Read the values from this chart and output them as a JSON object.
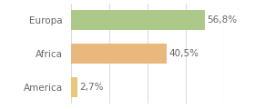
{
  "categories": [
    "America",
    "Africa",
    "Europa"
  ],
  "values": [
    2.7,
    40.5,
    56.8
  ],
  "bar_colors": [
    "#e8c878",
    "#e8b87c",
    "#adc98a"
  ],
  "labels": [
    "2,7%",
    "40,5%",
    "56,8%"
  ],
  "background_color": "#ffffff",
  "xlim": [
    0,
    65
  ],
  "bar_height": 0.6,
  "label_fontsize": 7.5,
  "tick_fontsize": 7.5,
  "grid_color": "#dddddd",
  "grid_positions": [
    0,
    16.25,
    32.5,
    48.75,
    65
  ]
}
